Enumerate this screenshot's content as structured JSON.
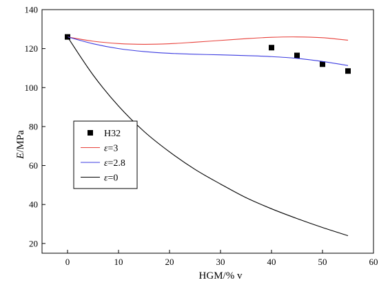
{
  "chart_data": {
    "type": "line",
    "xlabel": "HGM/% v",
    "ylabel_var": "E",
    "ylabel_unit": "/MPa",
    "xlim": [
      -5,
      60
    ],
    "ylim": [
      15,
      140
    ],
    "xticks": [
      0,
      10,
      20,
      30,
      40,
      50,
      60
    ],
    "yticks": [
      20,
      40,
      60,
      80,
      100,
      120,
      140
    ],
    "grid": false,
    "legend_position": "center-left",
    "series": [
      {
        "name": "H32",
        "kind": "scatter",
        "marker": "square",
        "color": "#000000",
        "x": [
          0,
          40,
          45,
          50,
          55
        ],
        "y": [
          126,
          120.5,
          116.5,
          112,
          108.5
        ]
      },
      {
        "name_var": "ε",
        "name_suffix": "=3",
        "kind": "line",
        "color": "#e8403a",
        "x": [
          0,
          5,
          10,
          15,
          20,
          25,
          30,
          35,
          40,
          45,
          50,
          55
        ],
        "y": [
          126,
          123.8,
          122.6,
          122.2,
          122.5,
          123.3,
          124.2,
          125.1,
          125.8,
          126,
          125.6,
          124.3
        ]
      },
      {
        "name_var": "ε",
        "name_suffix": "=2.8",
        "kind": "line",
        "color": "#3a3ae0",
        "x": [
          0,
          5,
          10,
          15,
          20,
          25,
          30,
          35,
          40,
          45,
          50,
          55
        ],
        "y": [
          126,
          122.5,
          120,
          118.5,
          117.6,
          117.1,
          116.8,
          116.4,
          115.9,
          115,
          113.4,
          111.3
        ]
      },
      {
        "name_var": "ε",
        "name_suffix": "=0",
        "kind": "line",
        "color": "#000000",
        "x": [
          0,
          5,
          10,
          15,
          20,
          25,
          30,
          35,
          40,
          45,
          50,
          55
        ],
        "y": [
          126,
          106.5,
          90.5,
          77.5,
          67,
          58,
          50.5,
          43.5,
          37.8,
          32.8,
          28.2,
          24
        ]
      }
    ]
  }
}
